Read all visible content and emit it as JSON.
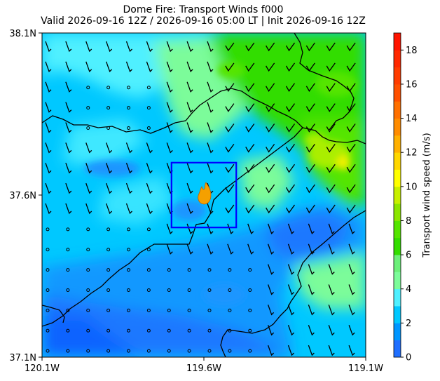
{
  "title": {
    "line1": "Dome Fire: Transport Winds f000",
    "line2": "Valid 2026-09-16 12Z / 2026-09-16 05:00 LT | Init 2026-09-16 12Z"
  },
  "axes": {
    "lat_ticks": [
      "38.1N",
      "37.6N",
      "37.1N"
    ],
    "lon_ticks": [
      "120.1W",
      "119.6W",
      "119.1W"
    ],
    "lat_range": [
      37.1,
      38.1
    ],
    "lon_range": [
      -120.1,
      -119.1
    ]
  },
  "colorbar": {
    "label": "Transport wind speed (m/s)",
    "ticks": [
      "0",
      "2",
      "4",
      "6",
      "8",
      "10",
      "12",
      "14",
      "16",
      "18"
    ],
    "min": 0,
    "max": 19,
    "colors": [
      "#1f6fff",
      "#0096ff",
      "#00c8ff",
      "#4ff0ff",
      "#7cfc9a",
      "#6cf07a",
      "#33dd00",
      "#55e500",
      "#8ce600",
      "#c8f000",
      "#ffff00",
      "#ffd700",
      "#ffb000",
      "#ff8c00",
      "#ff7000",
      "#ff5000",
      "#ff3c00",
      "#ff2800",
      "#ff1400"
    ]
  },
  "fire_box": {
    "lat_range": [
      37.5,
      37.7
    ],
    "lon_range": [
      -119.7,
      -119.5
    ],
    "color": "#0000ff"
  },
  "fire_icon": {
    "name": "fire-icon",
    "color": "#f5a000"
  },
  "map": {
    "dominant_colors": {
      "low": "#1e78ff",
      "mid": "#00c8ff",
      "cyan_light": "#50f0ff",
      "green_light": "#7cfc9a",
      "green": "#33dd00",
      "yellow_green": "#aaee00",
      "yellow": "#f0f000"
    }
  }
}
